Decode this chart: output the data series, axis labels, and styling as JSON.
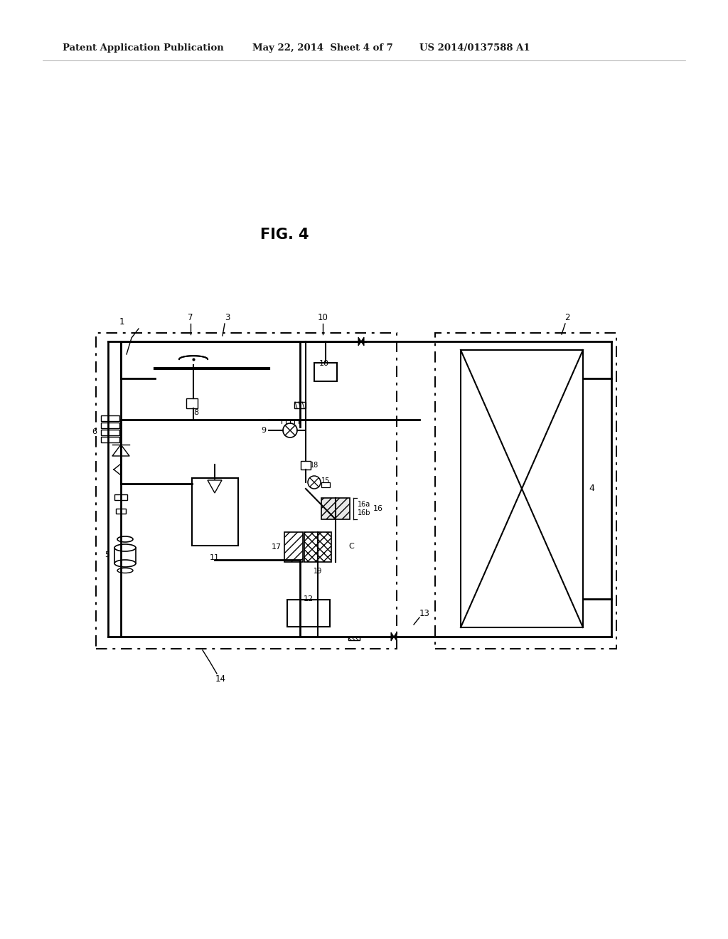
{
  "title": "FIG. 4",
  "header_left": "Patent Application Publication",
  "header_center": "May 22, 2014  Sheet 4 of 7",
  "header_right": "US 2014/0137588 A1",
  "bg_color": "#ffffff",
  "line_color": "#000000",
  "fig_width": 10.24,
  "fig_height": 13.2,
  "dpi": 100
}
